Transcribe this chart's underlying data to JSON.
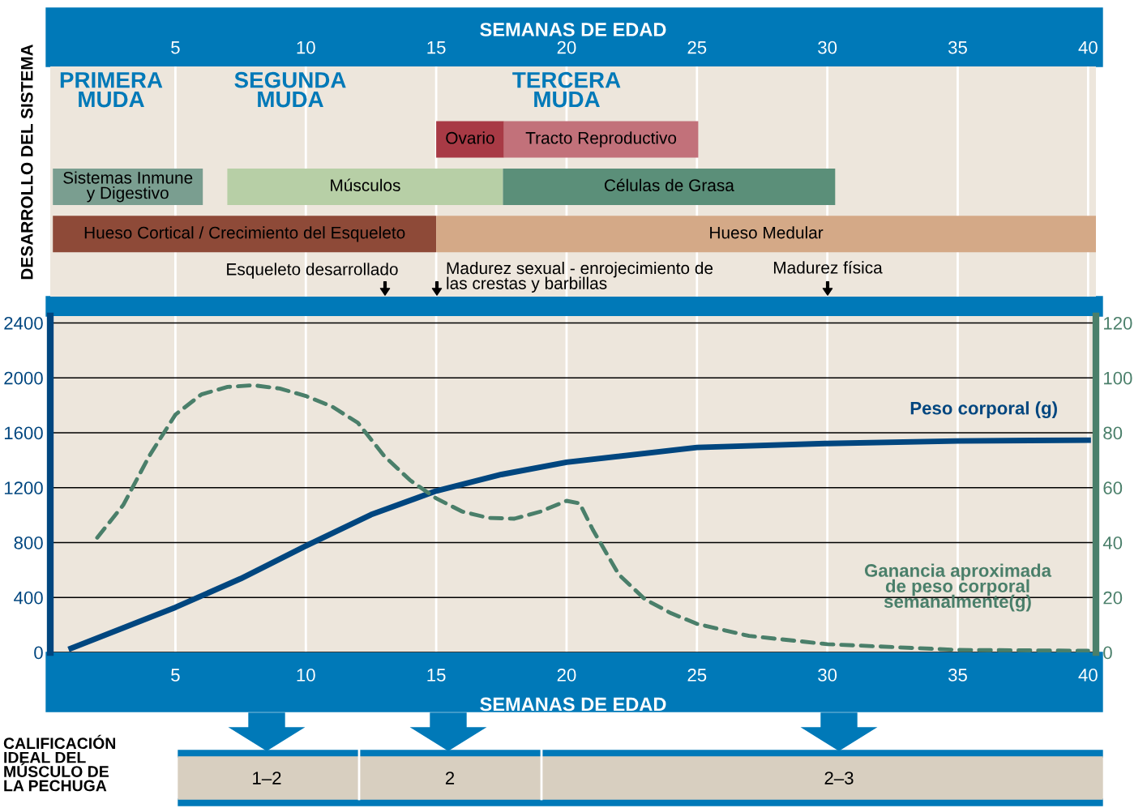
{
  "chart_data": [
    {
      "type": "bar",
      "orientation": "horizontal",
      "title": "DESARROLLO DEL SISTEMA",
      "grid": "x",
      "xlabel": "SEMANAS DE EDAD",
      "xlim": [
        0.2,
        40.3
      ],
      "xticks": [
        5,
        10,
        15,
        20,
        25,
        30,
        35,
        40
      ],
      "categories": [
        null,
        null,
        null
      ],
      "series": [
        {
          "base": [
            15,
            0.3,
            0.3
          ],
          "values": [
            2.6,
            5.75,
            14.7
          ],
          "colors": [
            "#a83a45",
            "#7a9e90",
            "#8e4a38"
          ],
          "value_labels": [
            "Ovario",
            "Sistemas Inmune\ny Digestivo",
            "Hueso Cortical / Crecimiento del Esqueleto"
          ]
        },
        {
          "base": [
            17.6,
            6.99,
            15
          ],
          "values": [
            7.45,
            10.57,
            25.3
          ],
          "colors": [
            "#c2717a",
            "#b7cfa6",
            "#d4a987"
          ],
          "value_labels": [
            "Tracto Reproductivo",
            "Músculos",
            "Hueso Medular"
          ]
        },
        {
          "base": [
            null,
            17.56,
            null
          ],
          "values": [
            null,
            12.74,
            null
          ],
          "colors": [
            null,
            "#5b8f79",
            null
          ],
          "value_labels": [
            null,
            "Células de Grasa",
            null
          ]
        }
      ],
      "annotations": [
        "PRIMERA\nMUDA",
        "SEGUNDA\nMUDA",
        "TERCERA\nMUDA",
        "Esqueleto desarrollado",
        "Madurez sexual - enrojecimiento de\nlas crestas y barbillas",
        "Madurez física"
      ]
    },
    {
      "type": "line",
      "xlabel": "SEMANAS DE EDAD",
      "xlim": [
        0.2,
        40.3
      ],
      "xticks": [
        5,
        10,
        15,
        20,
        25,
        30,
        35,
        40
      ],
      "ylim": [
        0,
        2450
      ],
      "yticks": [
        0,
        400,
        800,
        1200,
        1600,
        2000,
        2400
      ],
      "y2lim": [
        0,
        122.5
      ],
      "y2ticks": [
        0,
        20,
        40,
        60,
        80,
        100,
        120
      ],
      "grid": true,
      "legend": false,
      "series": [
        {
          "name": "Peso corporal (g)",
          "color": "#00467f",
          "line_style": "solid",
          "x": [
            1,
            3,
            5,
            7.5,
            10,
            12.5,
            15,
            17.5,
            20,
            25,
            30,
            35,
            40
          ],
          "values": [
            30,
            179,
            328,
            537,
            776,
            1003,
            1176,
            1296,
            1385,
            1493,
            1522,
            1540,
            1546
          ]
        },
        {
          "name": "Ganancia aproximada\nde peso corporal\nsemanalmente(g)",
          "color": "#4a7f6a",
          "line_style": "dashed",
          "axis": "y2",
          "x": [
            2,
            3,
            4,
            5,
            6,
            7,
            8,
            9,
            10,
            11,
            12,
            13,
            14,
            15,
            16,
            17,
            18,
            19,
            20,
            20.5,
            21,
            22,
            23,
            24,
            25,
            27,
            30,
            35,
            40
          ],
          "values": [
            41.8,
            53.7,
            71.6,
            86.6,
            94,
            96.7,
            97.3,
            96.1,
            93.4,
            89.6,
            83.6,
            71.6,
            62.7,
            56.1,
            51.3,
            49,
            48.7,
            51.3,
            55.2,
            54.3,
            44.8,
            28.4,
            19.4,
            14.3,
            10.4,
            6,
            3,
            0.9,
            0.6
          ]
        }
      ]
    },
    {
      "type": "other",
      "title": "CALIFICACIÓN\nIDEAL DEL\nMÚSCULO DE\nLA PECHUGA",
      "annotations": [
        "1–2",
        "2",
        "2–3"
      ]
    }
  ]
}
